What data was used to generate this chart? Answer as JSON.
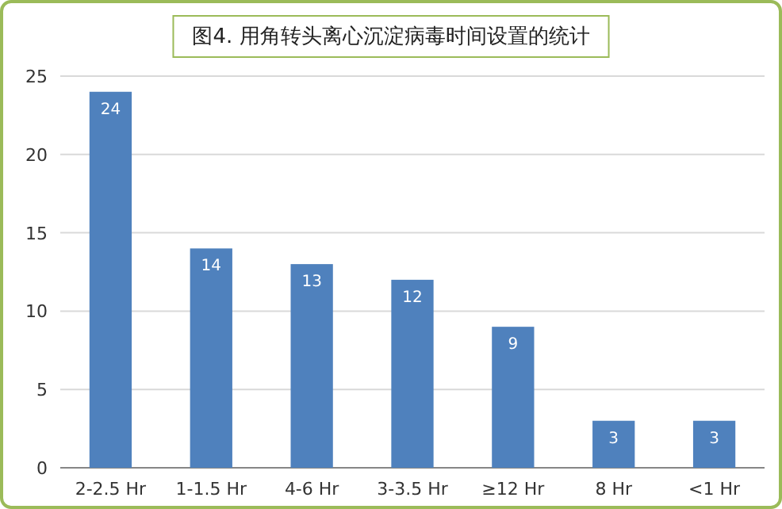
{
  "chart_data": {
    "type": "bar",
    "title": "图4. 用角转头离心沉淀病毒时间设置的统计",
    "categories": [
      "2-2.5 Hr",
      "1-1.5 Hr",
      "4-6 Hr",
      "3-3.5 Hr",
      "≥12 Hr",
      "8 Hr",
      "<1 Hr"
    ],
    "values": [
      24,
      14,
      13,
      12,
      9,
      3,
      3
    ],
    "color": "#4f81bd",
    "ylim": [
      0,
      25
    ],
    "yticks": [
      0,
      5,
      10,
      15,
      20,
      25
    ],
    "grid": "y",
    "data_labels": true
  }
}
